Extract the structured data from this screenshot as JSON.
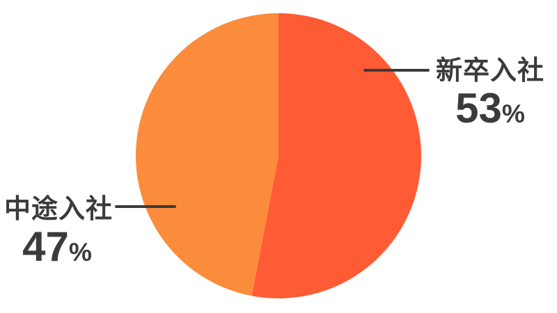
{
  "theme": {
    "background": "#FFFFFF",
    "text_color": "#3B3B3B",
    "leader_line_color": "#3B3B3B"
  },
  "chart_data": {
    "type": "pie",
    "title": "",
    "start_angle_deg": -90,
    "direction": "clockwise",
    "legend": "callout-labels-with-leader-lines",
    "slices": [
      {
        "key": "new-graduate",
        "label": "新卒入社",
        "value": 53,
        "unit": "%",
        "color": "#FF5B35"
      },
      {
        "key": "mid-career",
        "label": "中途入社",
        "value": 47,
        "unit": "%",
        "color": "#FB8C3C"
      }
    ]
  }
}
